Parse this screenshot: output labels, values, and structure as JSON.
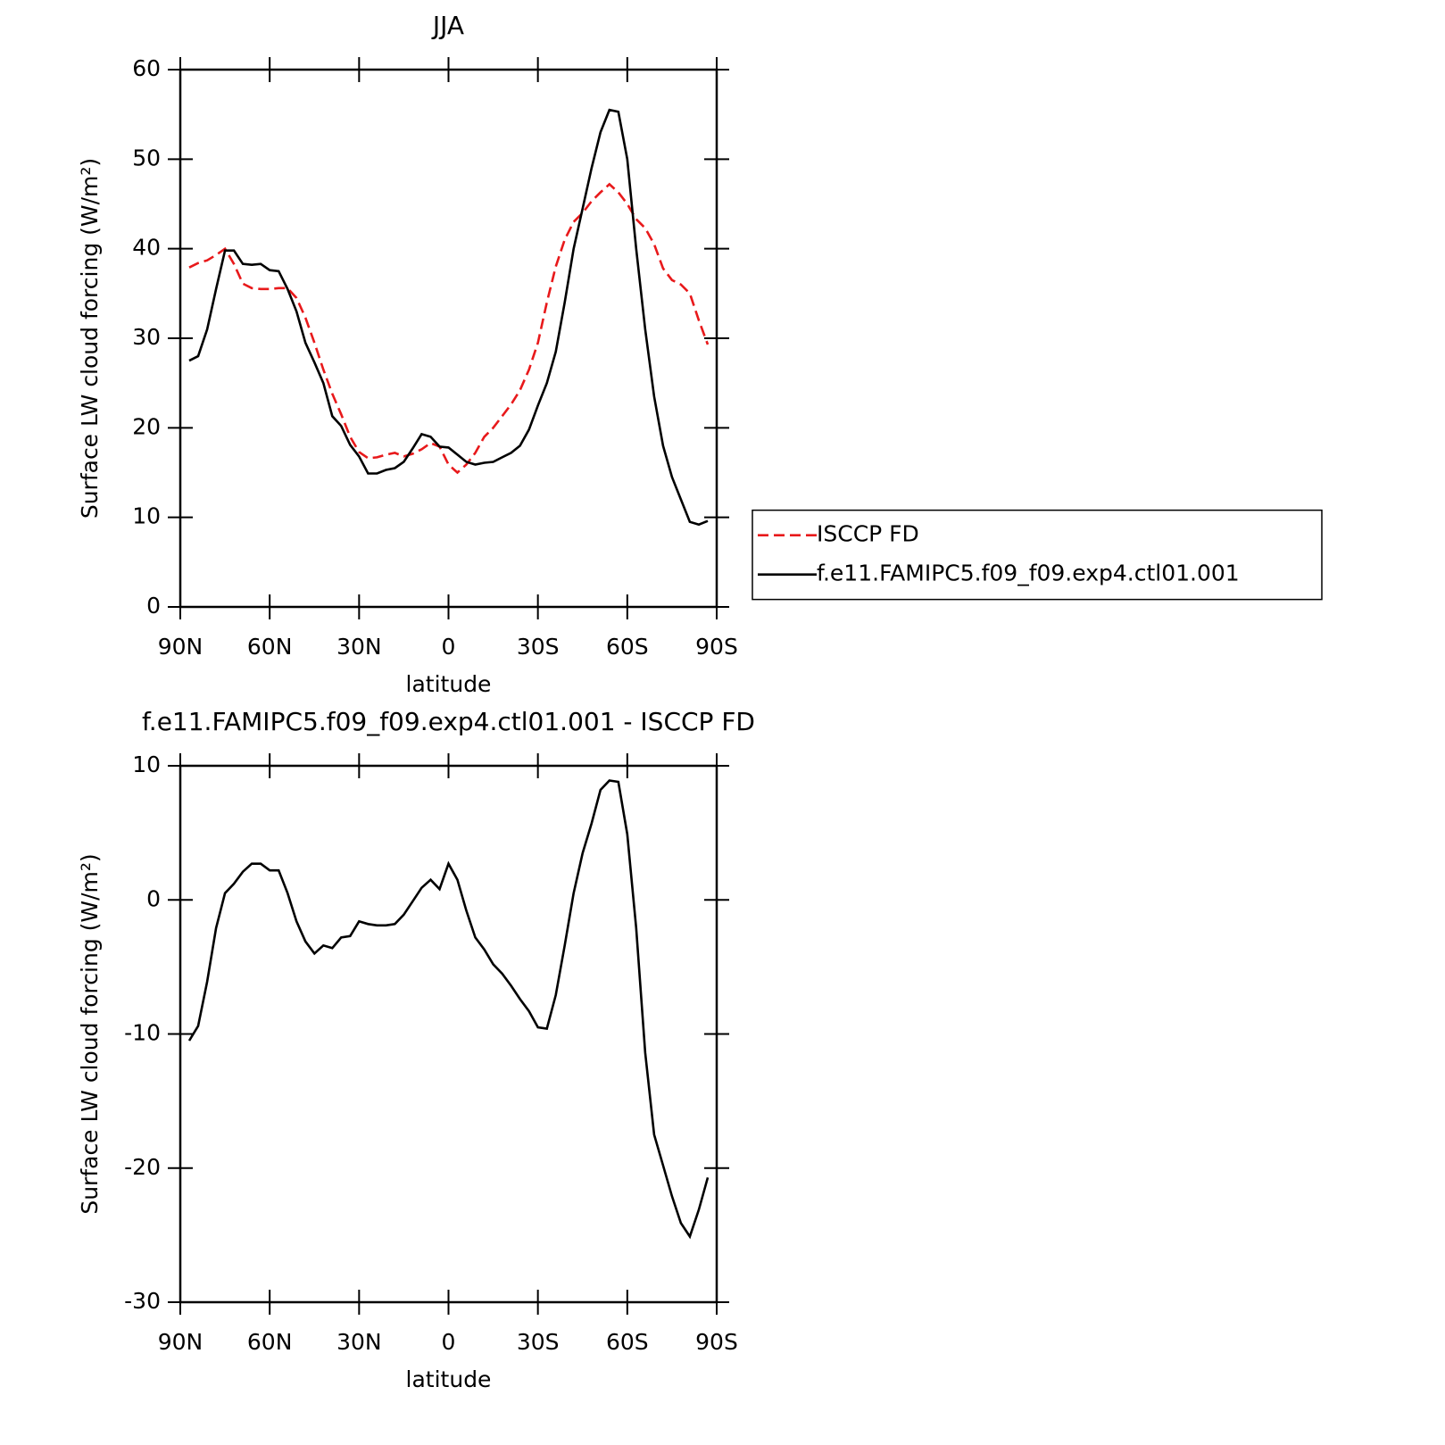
{
  "chart_data": [
    {
      "type": "line",
      "title": "JJA",
      "xlabel": "latitude",
      "ylabel": "Surface LW cloud forcing (W/m²)",
      "x": [
        87,
        84,
        81,
        78,
        75,
        72,
        69,
        66,
        63,
        60,
        57,
        54,
        51,
        48,
        45,
        42,
        39,
        36,
        33,
        30,
        27,
        24,
        21,
        18,
        15,
        12,
        9,
        6,
        3,
        0,
        -3,
        -6,
        -9,
        -12,
        -15,
        -18,
        -21,
        -24,
        -27,
        -30,
        -33,
        -36,
        -39,
        -42,
        -45,
        -48,
        -51,
        -54,
        -57,
        -60,
        -63,
        -66,
        -69,
        -72,
        -75,
        -78,
        -81,
        -84,
        -87
      ],
      "series": [
        {
          "name": "ISCCP FD",
          "color": "#e8191b",
          "style": "dashed",
          "values": [
            37.9,
            38.4,
            38.7,
            39.3,
            40.0,
            38.3,
            36.1,
            35.6,
            35.5,
            35.5,
            35.6,
            35.6,
            34.5,
            32.3,
            29.5,
            26.5,
            23.8,
            21.5,
            19,
            17.3,
            16.6,
            16.7,
            17,
            17.2,
            16.8,
            17.1,
            17.6,
            18.3,
            17.9,
            15.9,
            15.0,
            15.9,
            17.2,
            19,
            20,
            21.3,
            22.6,
            24.2,
            26.5,
            29.5,
            34,
            38,
            41,
            43,
            44,
            45.3,
            46.3,
            47.2,
            46.3,
            45,
            43.3,
            42.3,
            40.5,
            37.8,
            36.5,
            36,
            35,
            32,
            29.3
          ]
        },
        {
          "name": "f.e11.FAMIPC5.f09_f09.exp4.ctl01.001",
          "color": "#000000",
          "style": "solid",
          "values": [
            27.5,
            28.0,
            31,
            35.5,
            39.8,
            39.8,
            38.3,
            38.2,
            38.3,
            37.6,
            37.5,
            35.5,
            33,
            29.5,
            27.3,
            25,
            21.3,
            20.2,
            18.1,
            16.8,
            14.9,
            14.9,
            15.3,
            15.5,
            16.2,
            17.7,
            19.3,
            19.0,
            17.9,
            17.8,
            17,
            16.2,
            15.9,
            16.1,
            16.2,
            16.7,
            17.2,
            18,
            19.8,
            22.5,
            25,
            28.5,
            34,
            40,
            44.5,
            49,
            53,
            55.5,
            55.3,
            50,
            40,
            31,
            23.5,
            18,
            14.5,
            12,
            9.5,
            9.2,
            9.6
          ]
        }
      ],
      "xlim": [
        90,
        -90
      ],
      "xticks": [
        {
          "value": 90,
          "label": "90N"
        },
        {
          "value": 60,
          "label": "60N"
        },
        {
          "value": 30,
          "label": "30N"
        },
        0,
        {
          "value": -30,
          "label": "30S"
        },
        {
          "value": -60,
          "label": "60S"
        },
        {
          "value": -90,
          "label": "90S"
        }
      ],
      "ylim": [
        0,
        60
      ],
      "yticks": [
        0,
        10,
        20,
        30,
        40,
        50,
        60
      ],
      "legend": "outside-right"
    },
    {
      "type": "line",
      "title": "f.e11.FAMIPC5.f09_f09.exp4.ctl01.001 - ISCCP FD",
      "xlabel": "latitude",
      "ylabel": "Surface LW cloud forcing (W/m²)",
      "x": [
        87,
        84,
        81,
        78,
        75,
        72,
        69,
        66,
        63,
        60,
        57,
        54,
        51,
        48,
        45,
        42,
        39,
        36,
        33,
        30,
        27,
        24,
        21,
        18,
        15,
        12,
        9,
        6,
        3,
        0,
        -3,
        -6,
        -9,
        -12,
        -15,
        -18,
        -21,
        -24,
        -27,
        -30,
        -33,
        -36,
        -39,
        -42,
        -45,
        -48,
        -51,
        -54,
        -57,
        -60,
        -63,
        -66,
        -69,
        -72,
        -75,
        -78,
        -81,
        -84,
        -87
      ],
      "series": [
        {
          "color": "#000000",
          "style": "solid",
          "values": [
            -10.5,
            -9.4,
            -6.1,
            -2.1,
            0.5,
            1.2,
            2.1,
            2.7,
            2.7,
            2.2,
            2.2,
            0.5,
            -1.6,
            -3.1,
            -4.0,
            -3.4,
            -3.6,
            -2.8,
            -2.7,
            -1.6,
            -1.8,
            -1.9,
            -1.9,
            -1.8,
            -1.1,
            -0.1,
            0.9,
            1.5,
            0.8,
            2.7,
            1.5,
            -0.8,
            -2.8,
            -3.7,
            -4.8,
            -5.5,
            -6.4,
            -7.4,
            -8.3,
            -9.5,
            -9.6,
            -7.1,
            -3.4,
            0.5,
            3.5,
            5.7,
            8.2,
            8.9,
            8.8,
            4.9,
            -2.1,
            -11.4,
            -17.5,
            -19.8,
            -22.1,
            -24.1,
            -25.1,
            -23.1,
            -20.7
          ]
        }
      ],
      "xlim": [
        90,
        -90
      ],
      "xticks": [
        {
          "value": 90,
          "label": "90N"
        },
        {
          "value": 60,
          "label": "60N"
        },
        {
          "value": 30,
          "label": "30N"
        },
        0,
        {
          "value": -30,
          "label": "30S"
        },
        {
          "value": -60,
          "label": "60S"
        },
        {
          "value": -90,
          "label": "90S"
        }
      ],
      "ylim": [
        -30,
        10
      ],
      "yticks": [
        -30,
        -20,
        -10,
        0,
        10
      ]
    }
  ]
}
